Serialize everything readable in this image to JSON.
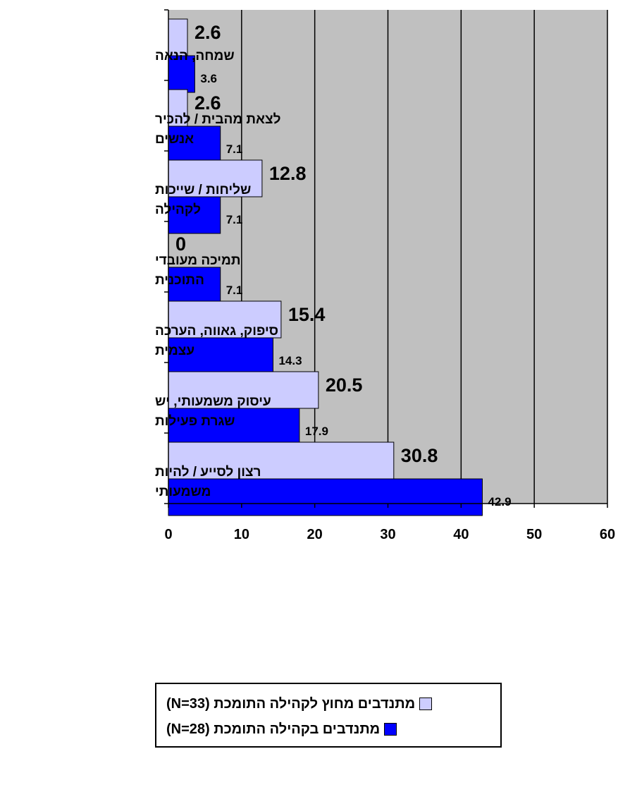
{
  "chart_data": {
    "type": "bar",
    "orientation": "horizontal",
    "categories": [
      [
        "שמחה, הנאה"
      ],
      [
        "לצאת מהבית / להכיר",
        "אנשים"
      ],
      [
        "שליחות / שייכות",
        "לקהילה"
      ],
      [
        "תמיכה מעובדי",
        "התוכנית"
      ],
      [
        "סיפוק, גאווה, הערכה",
        "עצמית"
      ],
      [
        "עיסוק משמעותי, יש",
        "שגרת פעילות"
      ],
      [
        "רצון לסייע / להיות",
        "משמעותי"
      ]
    ],
    "series": [
      {
        "name": "מתנדבים מחוץ לקהילה התומכת (N=33)",
        "color": "#ccccff",
        "values": [
          2.6,
          2.6,
          12.8,
          0,
          15.4,
          20.5,
          30.8
        ],
        "labels": [
          "2.6",
          "2.6",
          "12.8",
          "0",
          "15.4",
          "20.5",
          "30.8"
        ]
      },
      {
        "name": "מתנדבים בקהילה התומכת (N=28)",
        "color": "#0000ff",
        "values": [
          3.6,
          7.1,
          7.1,
          7.1,
          14.3,
          17.9,
          42.9
        ],
        "labels": [
          "3.6",
          "7.1",
          "7.1",
          "7.1",
          "14.3",
          "17.9",
          "42.9"
        ]
      }
    ],
    "xlim": [
      0,
      60
    ],
    "xticks": [
      "0",
      "10",
      "20",
      "30",
      "40",
      "50",
      "60"
    ],
    "grid": true,
    "plot_background": "#c0c0c0",
    "legend_position": "bottom"
  }
}
